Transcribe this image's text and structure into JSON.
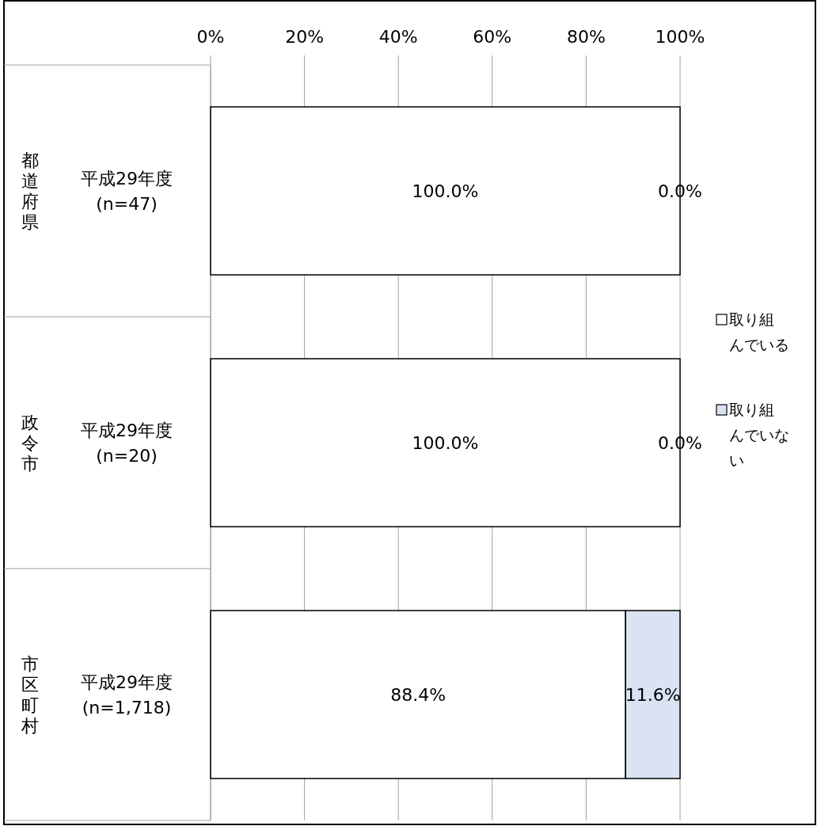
{
  "chart_data": {
    "type": "bar",
    "orientation": "horizontal",
    "stacked": true,
    "categories": [
      "平成29年度 (n=47)",
      "平成29年度 (n=20)",
      "平成29年度 (n=1,718)"
    ],
    "series": [
      {
        "name": "取り組んでいる",
        "color": "#ffffff",
        "values": [
          100,
          100,
          88.4
        ],
        "value_labels": [
          "100.0%",
          "100.0%",
          "88.4%"
        ]
      },
      {
        "name": "取り組んでいない",
        "color": "#dae3f3",
        "values": [
          0,
          0,
          11.6
        ],
        "value_labels": [
          "0.0%",
          "0.0%",
          "11.6%"
        ]
      }
    ],
    "xlim": [
      0,
      100
    ],
    "xticks": [
      {
        "value": 0,
        "label": "0%"
      },
      {
        "value": 20,
        "label": "20%"
      },
      {
        "value": 40,
        "label": "40%"
      },
      {
        "value": 60,
        "label": "60%"
      },
      {
        "value": 80,
        "label": "80%"
      },
      {
        "value": 100,
        "label": "100%"
      }
    ],
    "grid": "x",
    "legend": "right",
    "annotations": [
      "都道府県",
      "政令市",
      "市区町村"
    ]
  }
}
